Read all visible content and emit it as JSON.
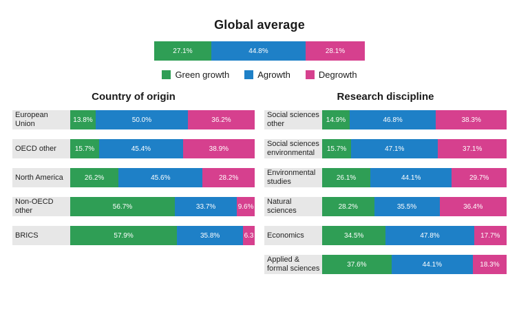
{
  "title": "Global average",
  "chart_data": {
    "type": "bar",
    "orientation": "horizontal",
    "stacked": true,
    "unit": "%",
    "series_names": [
      "Green growth",
      "Agrowth",
      "Degrowth"
    ],
    "colors": [
      "#2f9e55",
      "#1e80c7",
      "#d6408e"
    ],
    "legend_position": "top-center",
    "global_average": {
      "values": [
        27.1,
        44.8,
        28.1
      ],
      "labels": [
        "27.1%",
        "44.8%",
        "28.1%"
      ]
    },
    "panels": [
      {
        "title": "Country of origin",
        "rows": [
          {
            "category": "European Union",
            "values": [
              13.8,
              50.0,
              36.2
            ],
            "labels": [
              "13.8%",
              "50.0%",
              "36.2%"
            ]
          },
          {
            "category": "OECD other",
            "values": [
              15.7,
              45.4,
              38.9
            ],
            "labels": [
              "15.7%",
              "45.4%",
              "38.9%"
            ]
          },
          {
            "category": "North America",
            "values": [
              26.2,
              45.6,
              28.2
            ],
            "labels": [
              "26.2%",
              "45.6%",
              "28.2%"
            ]
          },
          {
            "category": "Non-OECD other",
            "values": [
              56.7,
              33.7,
              9.6
            ],
            "labels": [
              "56.7%",
              "33.7%",
              "9.6%"
            ]
          },
          {
            "category": "BRICS",
            "values": [
              57.9,
              35.8,
              6.3
            ],
            "labels": [
              "57.9%",
              "35.8%",
              "6.3"
            ]
          }
        ]
      },
      {
        "title": "Research discipline",
        "rows": [
          {
            "category": "Social sciences other",
            "values": [
              14.9,
              46.8,
              38.3
            ],
            "labels": [
              "14.9%",
              "46.8%",
              "38.3%"
            ]
          },
          {
            "category": "Social sciences environmental",
            "values": [
              15.7,
              47.1,
              37.1
            ],
            "labels": [
              "15.7%",
              "47.1%",
              "37.1%"
            ]
          },
          {
            "category": "Environmental studies",
            "values": [
              26.1,
              44.1,
              29.7
            ],
            "labels": [
              "26.1%",
              "44.1%",
              "29.7%"
            ]
          },
          {
            "category": "Natural sciences",
            "values": [
              28.2,
              35.5,
              36.4
            ],
            "labels": [
              "28.2%",
              "35.5%",
              "36.4%"
            ]
          },
          {
            "category": "Economics",
            "values": [
              34.5,
              47.8,
              17.7
            ],
            "labels": [
              "34.5%",
              "47.8%",
              "17.7%"
            ]
          },
          {
            "category": "Applied & formal sciences",
            "values": [
              37.6,
              44.1,
              18.3
            ],
            "labels": [
              "37.6%",
              "44.1%",
              "18.3%"
            ]
          }
        ]
      }
    ]
  }
}
